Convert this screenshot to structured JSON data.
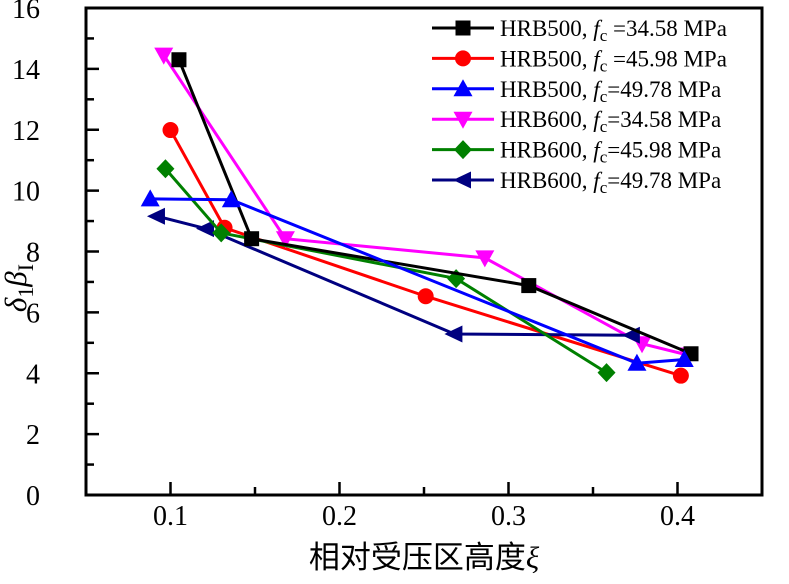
{
  "chart_data": {
    "type": "line",
    "title": "",
    "xlabel": {
      "text": "相对受压区高度",
      "symbol": "ξ"
    },
    "ylabel": {
      "d": "δ",
      "d_sub": "1",
      "b": "β",
      "b_sub": "I"
    },
    "xlim": [
      0.05,
      0.45
    ],
    "ylim": [
      0,
      16
    ],
    "xticks_major": [
      0.1,
      0.2,
      0.3,
      0.4
    ],
    "xtick_labels": [
      "0.1",
      "0.2",
      "0.3",
      "0.4"
    ],
    "xticks_minor": [
      0.15,
      0.25,
      0.35
    ],
    "yticks_major": [
      0,
      2,
      4,
      6,
      8,
      10,
      12,
      14,
      16
    ],
    "ytick_labels": [
      "0",
      "2",
      "4",
      "6",
      "8",
      "10",
      "12",
      "14",
      "16"
    ],
    "yticks_minor": [
      1,
      3,
      5,
      7,
      9,
      11,
      13,
      15
    ],
    "grid": false,
    "legend_position": "top-right-inside",
    "series": [
      {
        "name": "HRB500, fc=34.58 MPa",
        "legend": {
          "pre": "HRB500, ",
          "f": "f",
          "sub": "c",
          "post": " =34.58 MPa"
        },
        "color": "#000000",
        "marker": "square",
        "points": [
          [
            0.105,
            14.3
          ],
          [
            0.148,
            8.42
          ],
          [
            0.312,
            6.88
          ],
          [
            0.408,
            4.64
          ]
        ]
      },
      {
        "name": "HRB500, fc=45.98 MPa",
        "legend": {
          "pre": "HRB500, ",
          "f": "f",
          "sub": "c",
          "post": " =45.98 MPa"
        },
        "color": "#FF0000",
        "marker": "circle",
        "points": [
          [
            0.1,
            11.99
          ],
          [
            0.132,
            8.78
          ],
          [
            0.251,
            6.53
          ],
          [
            0.402,
            3.92
          ]
        ]
      },
      {
        "name": "HRB500, fc=49.78 MPa",
        "legend": {
          "pre": "HRB500, ",
          "f": "f",
          "sub": "c",
          "post": "=49.78 MPa"
        },
        "color": "#0000FF",
        "marker": "triangle-up",
        "points": [
          [
            0.088,
            9.73
          ],
          [
            0.136,
            9.7
          ],
          [
            0.376,
            4.33
          ],
          [
            0.404,
            4.45
          ]
        ]
      },
      {
        "name": "HRB600, fc=34.58 MPa",
        "legend": {
          "pre": "HRB600, ",
          "f": "f",
          "sub": "c",
          "post": "=34.58 MPa"
        },
        "color": "#FF00FF",
        "marker": "triangle-down",
        "points": [
          [
            0.096,
            14.45
          ],
          [
            0.168,
            8.42
          ],
          [
            0.286,
            7.79
          ],
          [
            0.379,
            4.97
          ],
          [
            0.406,
            4.6
          ]
        ]
      },
      {
        "name": "HRB600, fc=45.98 MPa",
        "legend": {
          "pre": "HRB600, ",
          "f": "f",
          "sub": "c",
          "post": "=45.98 MPa"
        },
        "color": "#008000",
        "marker": "diamond",
        "points": [
          [
            0.097,
            10.72
          ],
          [
            0.13,
            8.61
          ],
          [
            0.269,
            7.11
          ],
          [
            0.358,
            4.02
          ]
        ]
      },
      {
        "name": "HRB600, fc=49.78 MPa",
        "legend": {
          "pre": "HRB600, ",
          "f": "f",
          "sub": "c",
          "post": "=49.78 MPa"
        },
        "color": "#000080",
        "marker": "triangle-left",
        "points": [
          [
            0.092,
            9.16
          ],
          [
            0.121,
            8.75
          ],
          [
            0.268,
            5.29
          ],
          [
            0.373,
            5.25
          ]
        ]
      }
    ]
  }
}
